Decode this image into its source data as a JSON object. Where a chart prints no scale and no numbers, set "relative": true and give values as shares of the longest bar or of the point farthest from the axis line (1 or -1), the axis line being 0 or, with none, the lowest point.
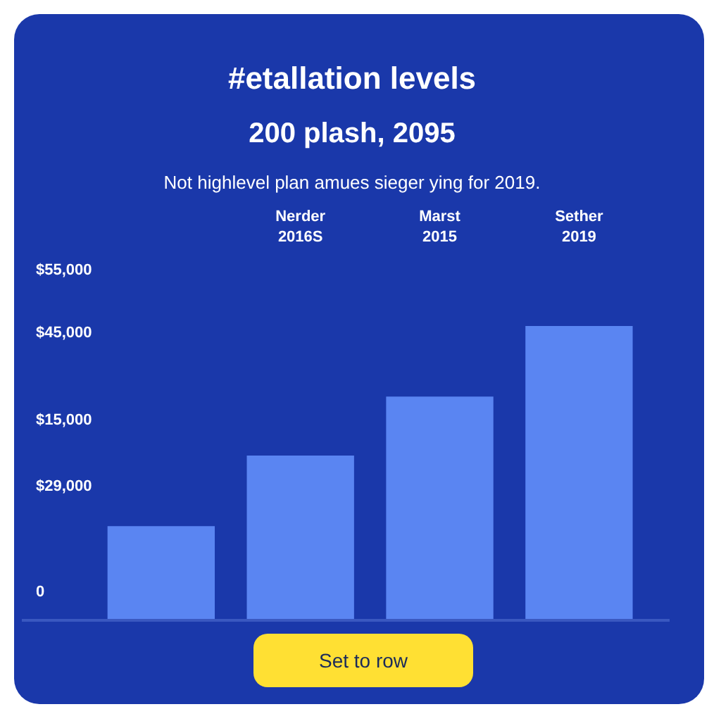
{
  "chart_data": {
    "type": "bar",
    "title": "#etallation levels",
    "subtitle": "200 plash, 2095",
    "annotations": [
      "Not highlevel plan amues sieger ying for 2019.",
      "$55,000",
      "$45,000",
      "$15,000",
      "$29,000",
      "0",
      "Set to row"
    ],
    "categories": [
      null,
      "Nerder\n2016S",
      "Marst\n2015",
      "Sether\n2019"
    ],
    "values": [
      0.32,
      0.56,
      0.76,
      1
    ],
    "color": "#5a85f2",
    "relative": true,
    "grid": false
  }
}
